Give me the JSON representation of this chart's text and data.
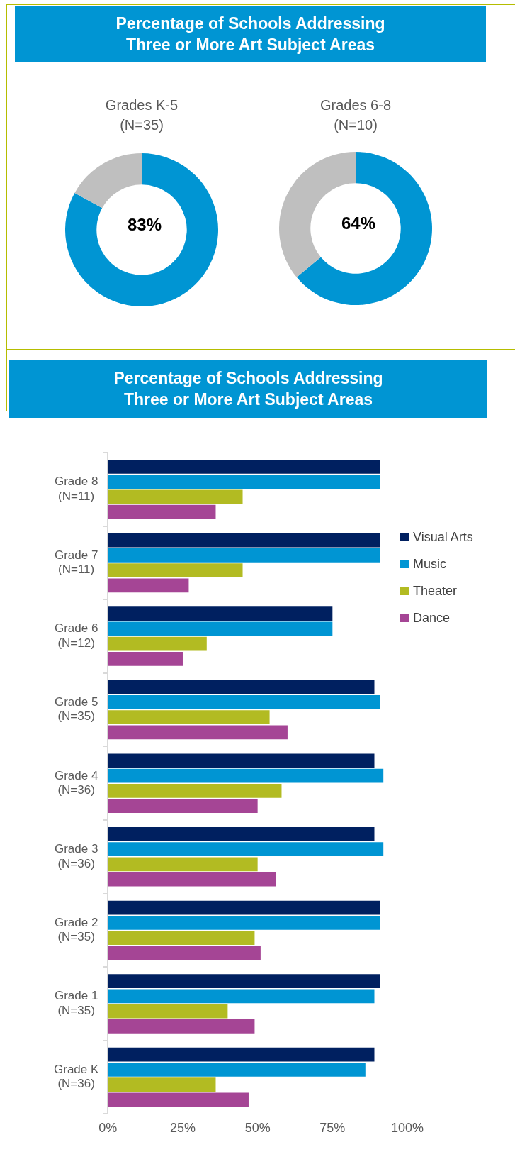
{
  "chart_data": [
    {
      "type": "donut",
      "title": "Percentage of Schools Addressing\nThree or More Art Subject Areas",
      "subtitle": "Grades K-5\n(N=35)",
      "categories": [
        null,
        null
      ],
      "values": [
        83,
        17
      ],
      "colors": [
        "#0095d3",
        "#bfbfbf"
      ],
      "value_labels": [
        "83%",
        null
      ]
    },
    {
      "type": "donut",
      "subtitle": "Grades 6-8\n(N=10)",
      "categories": [
        null,
        null
      ],
      "values": [
        64,
        36
      ],
      "colors": [
        "#0095d3",
        "#bfbfbf"
      ],
      "value_labels": [
        "64%",
        null
      ]
    },
    {
      "type": "bar",
      "orientation": "horizontal",
      "title": "Percentage of Schools Addressing\nThree or More Art Subject Areas",
      "categories": [
        "Grade 8\n(N=11)",
        "Grade 7\n(N=11)",
        "Grade 6\n(N=12)",
        "Grade 5\n(N=35)",
        "Grade 4\n(N=36)",
        "Grade 3\n(N=36)",
        "Grade 2\n(N=35)",
        "Grade 1\n(N=35)",
        "Grade K\n(N=36)"
      ],
      "series": [
        {
          "name": "Visual Arts",
          "color": "#002060",
          "values": [
            91,
            91,
            75,
            89,
            89,
            89,
            91,
            91,
            89
          ]
        },
        {
          "name": "Music",
          "color": "#0095d3",
          "values": [
            91,
            91,
            75,
            91,
            92,
            92,
            91,
            89,
            86
          ]
        },
        {
          "name": "Theater",
          "color": "#b2bb22",
          "values": [
            45,
            45,
            33,
            54,
            58,
            50,
            49,
            40,
            36
          ]
        },
        {
          "name": "Dance",
          "color": "#a54595",
          "values": [
            36,
            27,
            25,
            60,
            50,
            56,
            51,
            49,
            47
          ]
        }
      ],
      "xlim": [
        0,
        100
      ],
      "xticks": [
        {
          "value": 0,
          "label": "0%"
        },
        {
          "value": 25,
          "label": "25%"
        },
        {
          "value": 50,
          "label": "50%"
        },
        {
          "value": 75,
          "label": "75%"
        },
        {
          "value": 100,
          "label": "100%"
        }
      ],
      "legend": "right",
      "grid": false
    }
  ]
}
